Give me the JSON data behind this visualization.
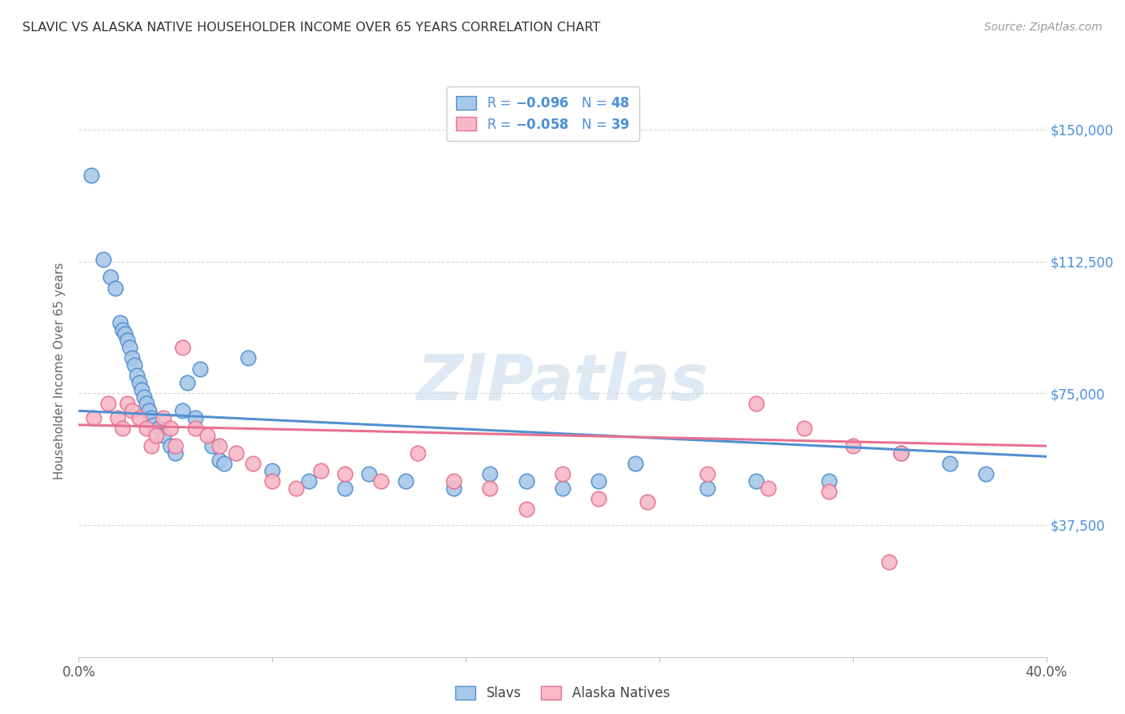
{
  "title": "SLAVIC VS ALASKA NATIVE HOUSEHOLDER INCOME OVER 65 YEARS CORRELATION CHART",
  "source": "Source: ZipAtlas.com",
  "ylabel": "Householder Income Over 65 years",
  "xlim": [
    0.0,
    0.4
  ],
  "ylim": [
    0,
    162500
  ],
  "yticks": [
    37500,
    75000,
    112500,
    150000
  ],
  "ytick_labels": [
    "$37,500",
    "$75,000",
    "$112,500",
    "$150,000"
  ],
  "xticks": [
    0.0,
    0.08,
    0.16,
    0.24,
    0.32,
    0.4
  ],
  "xtick_labels": [
    "0.0%",
    "",
    "",
    "",
    "",
    "40.0%"
  ],
  "watermark": "ZIPatlas",
  "slavs_color": "#a8c8e8",
  "alaska_color": "#f8b8c8",
  "slavs_line_color": "#5090d0",
  "alaska_line_color": "#e87090",
  "slavs_x": [
    0.005,
    0.01,
    0.013,
    0.015,
    0.017,
    0.018,
    0.019,
    0.02,
    0.021,
    0.022,
    0.023,
    0.024,
    0.025,
    0.026,
    0.027,
    0.028,
    0.029,
    0.03,
    0.031,
    0.033,
    0.035,
    0.038,
    0.04,
    0.043,
    0.045,
    0.048,
    0.05,
    0.055,
    0.058,
    0.06,
    0.07,
    0.08,
    0.095,
    0.11,
    0.12,
    0.135,
    0.155,
    0.17,
    0.185,
    0.2,
    0.215,
    0.23,
    0.26,
    0.28,
    0.31,
    0.34,
    0.36,
    0.375
  ],
  "slavs_y": [
    137000,
    113000,
    108000,
    105000,
    95000,
    93000,
    92000,
    90000,
    88000,
    85000,
    83000,
    80000,
    78000,
    76000,
    74000,
    72000,
    70000,
    68000,
    66000,
    65000,
    63000,
    60000,
    58000,
    70000,
    78000,
    68000,
    82000,
    60000,
    56000,
    55000,
    85000,
    53000,
    50000,
    48000,
    52000,
    50000,
    48000,
    52000,
    50000,
    48000,
    50000,
    55000,
    48000,
    50000,
    50000,
    58000,
    55000,
    52000
  ],
  "alaska_x": [
    0.006,
    0.012,
    0.016,
    0.018,
    0.02,
    0.022,
    0.025,
    0.028,
    0.03,
    0.032,
    0.035,
    0.038,
    0.04,
    0.043,
    0.048,
    0.053,
    0.058,
    0.065,
    0.072,
    0.08,
    0.09,
    0.1,
    0.11,
    0.125,
    0.14,
    0.155,
    0.17,
    0.185,
    0.2,
    0.215,
    0.235,
    0.26,
    0.285,
    0.31,
    0.335,
    0.28,
    0.3,
    0.32,
    0.34
  ],
  "alaska_y": [
    68000,
    72000,
    68000,
    65000,
    72000,
    70000,
    68000,
    65000,
    60000,
    63000,
    68000,
    65000,
    60000,
    88000,
    65000,
    63000,
    60000,
    58000,
    55000,
    50000,
    48000,
    53000,
    52000,
    50000,
    58000,
    50000,
    48000,
    42000,
    52000,
    45000,
    44000,
    52000,
    48000,
    47000,
    27000,
    72000,
    65000,
    60000,
    58000
  ],
  "background_color": "#ffffff",
  "grid_color": "#d8d8d8",
  "title_color": "#444444"
}
